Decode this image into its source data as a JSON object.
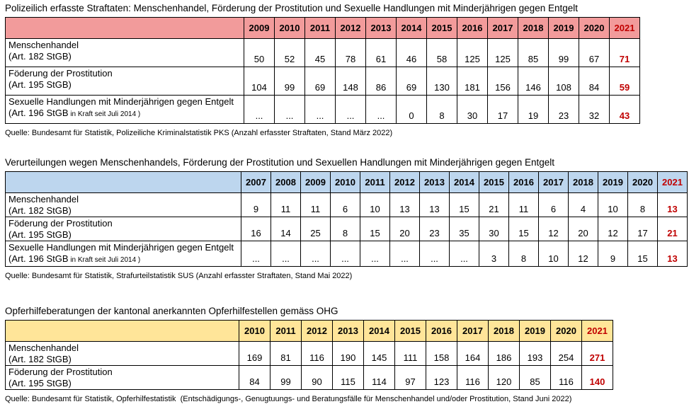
{
  "colors": {
    "highlight": "#C00000",
    "border": "#000000",
    "police_header_bg": "#F29B9B",
    "convictions_header_bg": "#BDD6EE",
    "victim_support_header_bg": "#FFE599"
  },
  "tables": [
    {
      "id": "police-recorded-offences",
      "title": "Polizeilich erfasste Straftaten: Menschenhandel, Förderung der Prostitution und Sexuelle Handlungen mit Minderjährigen gegen Entgelt",
      "source": "Quelle: Bundesamt für Statistik, Polizeiliche Kriminalstatistik PKS (Anzahl erfasster Straftaten, Stand März 2022)",
      "header_bg": "#F29B9B",
      "highlight_last": true,
      "years": [
        "2009",
        "2010",
        "2011",
        "2012",
        "2013",
        "2014",
        "2015",
        "2016",
        "2017",
        "2018",
        "2019",
        "2020",
        "2021"
      ],
      "rows": [
        {
          "label": "Menschenhandel",
          "article": "(Art. 182 StGB)",
          "article_note": "",
          "values": [
            "50",
            "52",
            "45",
            "78",
            "61",
            "46",
            "58",
            "125",
            "125",
            "85",
            "99",
            "67",
            "71"
          ]
        },
        {
          "label": "Föderung der Prostitution",
          "article": "(Art. 195 StGB)",
          "article_note": "",
          "values": [
            "104",
            "99",
            "69",
            "148",
            "86",
            "69",
            "130",
            "181",
            "156",
            "146",
            "108",
            "84",
            "59"
          ]
        },
        {
          "label": "Sexuelle Handlungen mit Minderjährigen gegen Entgelt",
          "article": "(Art. 196 StGB",
          "article_note": "in Kraft seit Juli 2014 )",
          "values": [
            "...",
            "...",
            "...",
            "...",
            "...",
            "0",
            "8",
            "30",
            "17",
            "19",
            "23",
            "32",
            "43"
          ]
        }
      ]
    },
    {
      "id": "convictions",
      "title": "Verurteilungen wegen Menschenhandels, Förderung der Prostitution und Sexuellen Handlungen mit Minderjährigen gegen Entgelt",
      "source": "Quelle: Bundesamt für Statistik, Strafurteilstatistik SUS (Anzahl erfasster Straftaten, Stand Mai 2022)",
      "header_bg": "#BDD6EE",
      "highlight_last": true,
      "years": [
        "2007",
        "2008",
        "2009",
        "2010",
        "2011",
        "2012",
        "2013",
        "2014",
        "2015",
        "2016",
        "2017",
        "2018",
        "2019",
        "2020",
        "2021"
      ],
      "rows": [
        {
          "label": "Menschenhandel",
          "article": "(Art. 182 StGB)",
          "article_note": "",
          "values": [
            "9",
            "11",
            "11",
            "6",
            "10",
            "13",
            "13",
            "15",
            "21",
            "11",
            "6",
            "4",
            "10",
            "8",
            "13"
          ]
        },
        {
          "label": "Föderung der Prostitution",
          "article": "(Art. 195 StGB)",
          "article_note": "",
          "values": [
            "16",
            "14",
            "25",
            "8",
            "15",
            "20",
            "23",
            "35",
            "30",
            "15",
            "12",
            "20",
            "12",
            "17",
            "21"
          ]
        },
        {
          "label": "Sexuelle Handlungen mit Minderjährigen gegen Entgelt",
          "article": "(Art. 196 StGB",
          "article_note": "in Kraft seit Juli 2014 )",
          "values": [
            "...",
            "...",
            "...",
            "...",
            "...",
            "...",
            "...",
            "...",
            "3",
            "8",
            "10",
            "12",
            "9",
            "15",
            "13"
          ]
        }
      ]
    },
    {
      "id": "victim-support",
      "title": "Opferhilfeberatungen der kantonal anerkannten Opferhilfestellen gemäss OHG",
      "source": "Quelle: Bundesamt für Statistik, Opferhilfestatistik  (Entschädigungs-, Genugtuungs- und Beratungsfälle für Menschenhandel und/oder Prostitution, Stand Juni 2022)",
      "header_bg": "#FFE599",
      "highlight_last": true,
      "years": [
        "2010",
        "2011",
        "2012",
        "2013",
        "2014",
        "2015",
        "2016",
        "2017",
        "2018",
        "2019",
        "2020",
        "2021"
      ],
      "rows": [
        {
          "label": "Menschenhandel",
          "article": "(Art. 182 StGB)",
          "article_note": "",
          "values": [
            "169",
            "81",
            "116",
            "190",
            "145",
            "111",
            "158",
            "164",
            "186",
            "193",
            "254",
            "271"
          ]
        },
        {
          "label": "Föderung der Prostitution",
          "article": "(Art. 195 StGB)",
          "article_note": "",
          "values": [
            "84",
            "99",
            "90",
            "115",
            "114",
            "97",
            "123",
            "116",
            "120",
            "85",
            "116",
            "140"
          ]
        }
      ]
    }
  ]
}
